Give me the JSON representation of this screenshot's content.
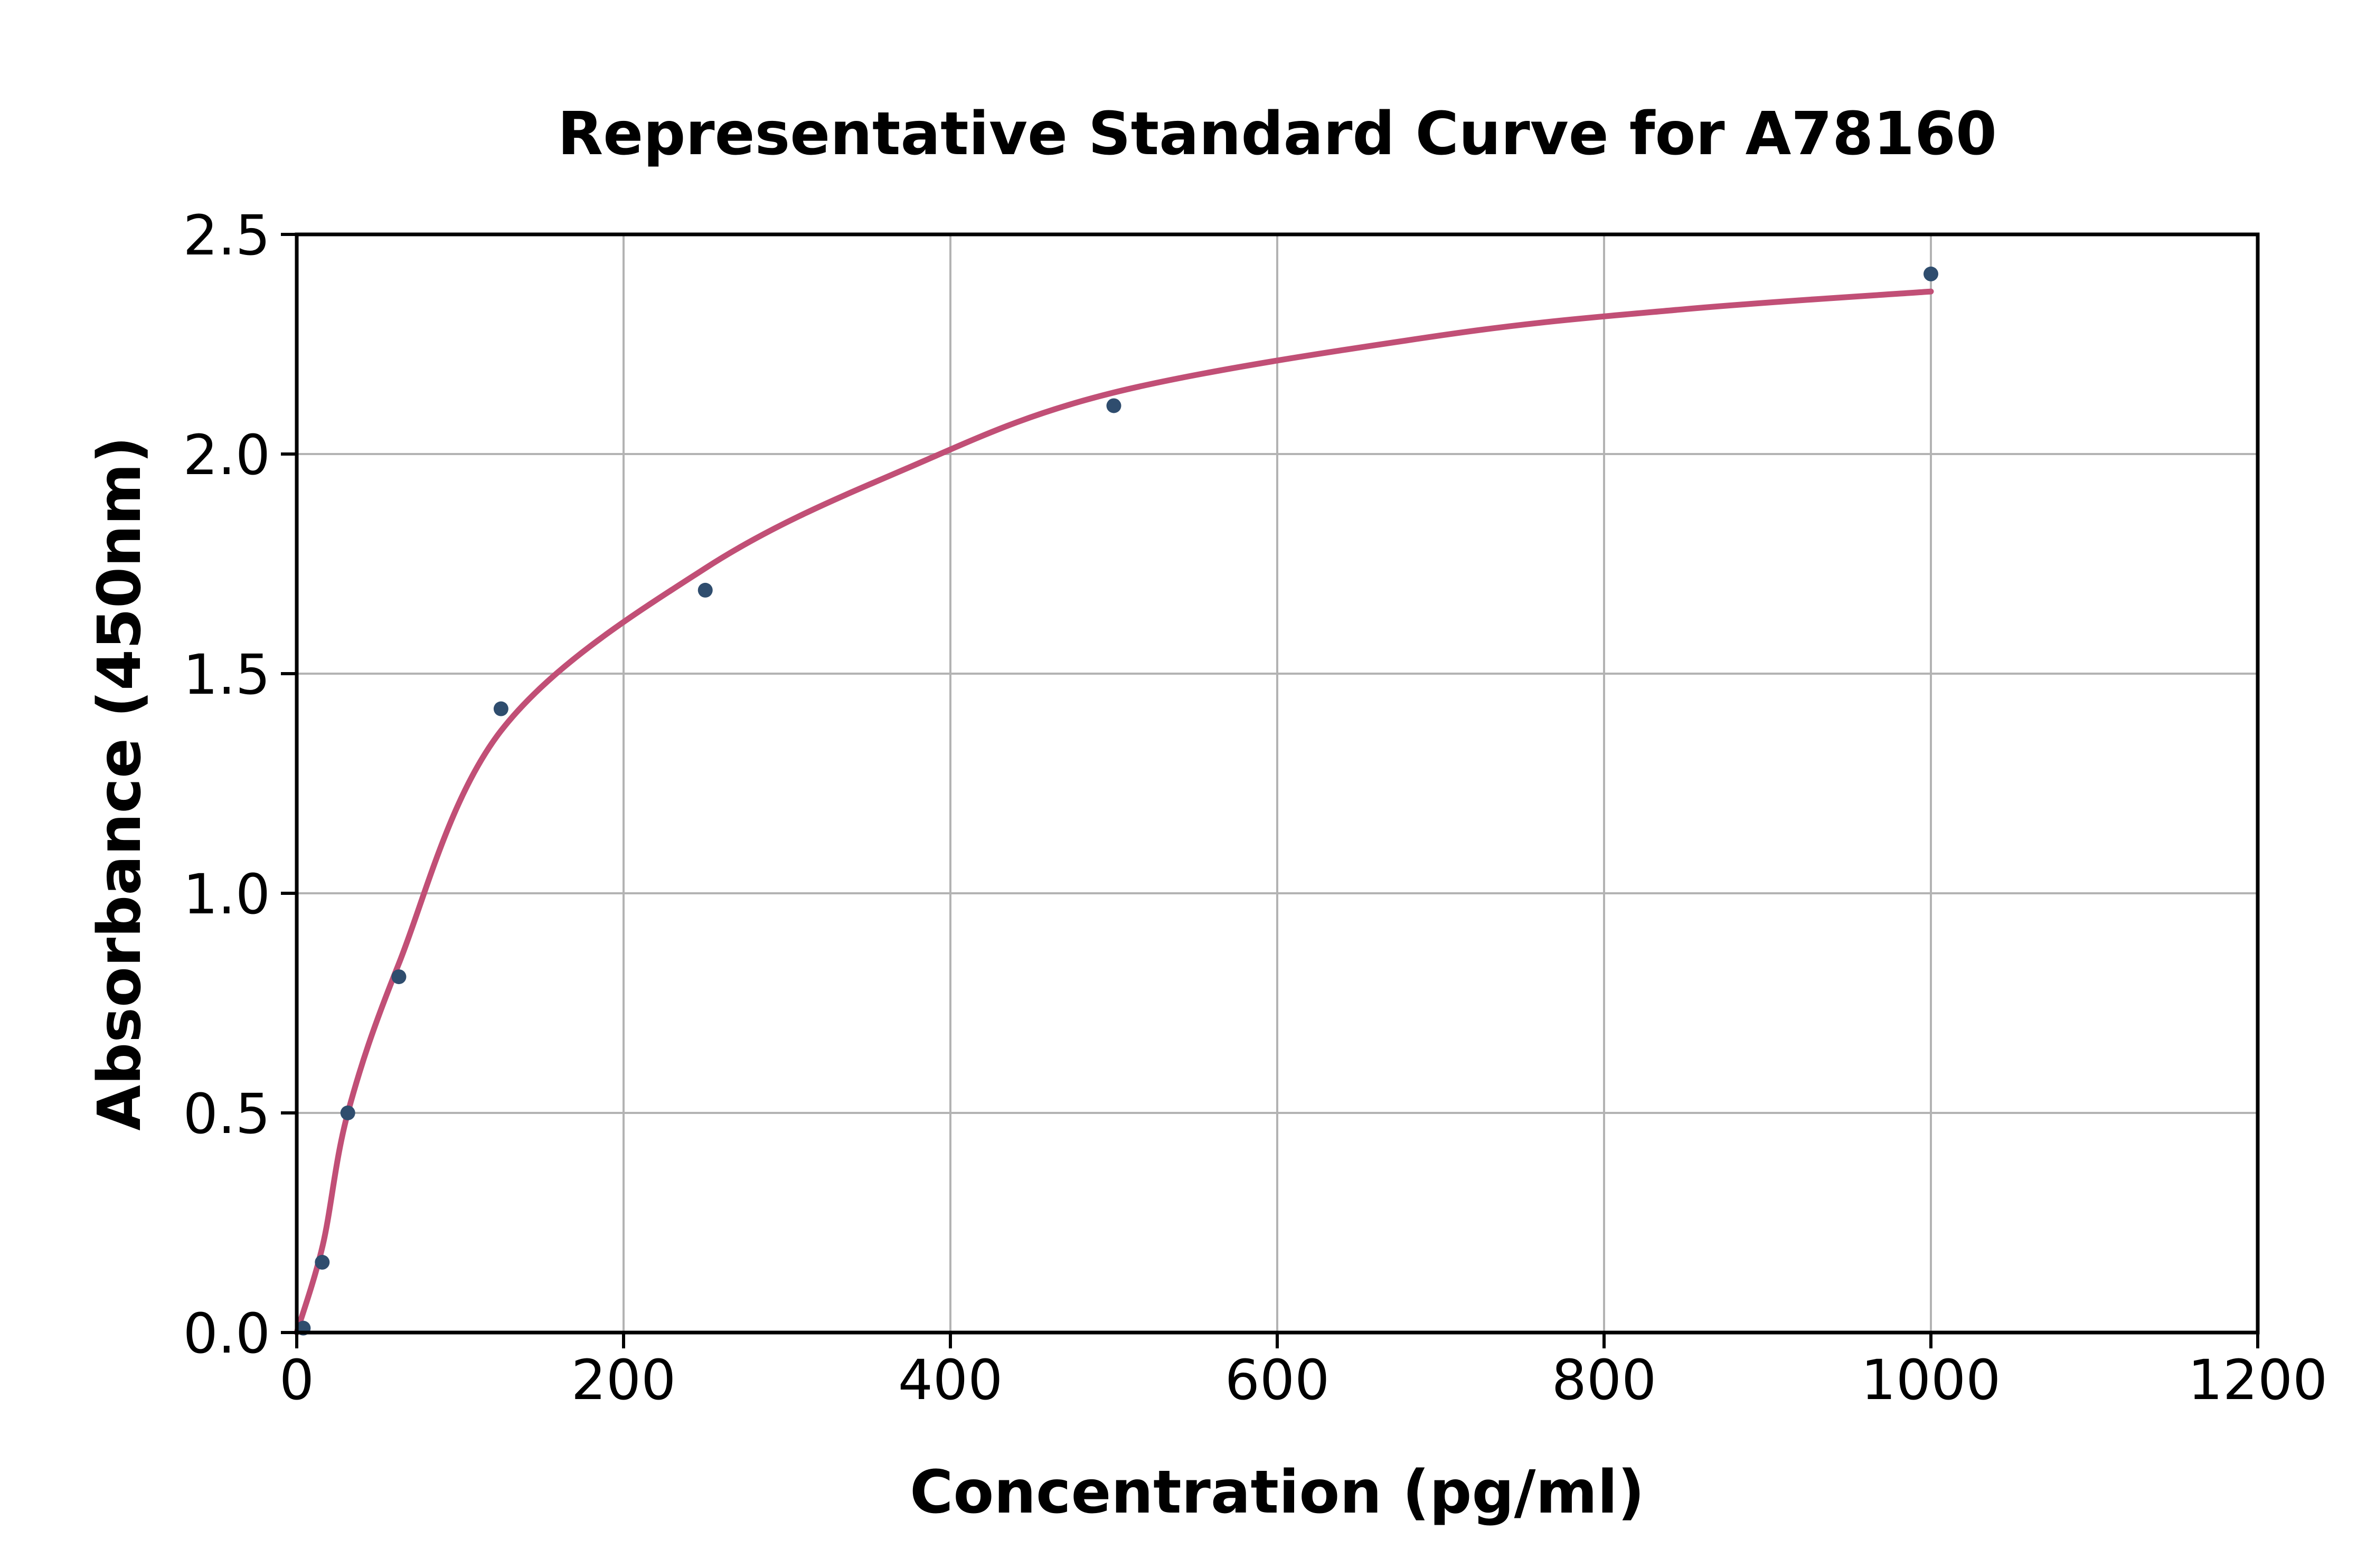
{
  "chart_data": {
    "type": "scatter",
    "title": "Representative Standard Curve for A78160",
    "xlabel": "Concentration (pg/ml)",
    "ylabel": "Absorbance (450nm)",
    "xlim": [
      0,
      1200
    ],
    "ylim": [
      0,
      2.5
    ],
    "x_ticks": [
      0,
      200,
      400,
      600,
      800,
      1000,
      1200
    ],
    "x_tick_labels": [
      "0",
      "200",
      "400",
      "600",
      "800",
      "1000",
      "1200"
    ],
    "y_ticks": [
      0,
      0.5,
      1.0,
      1.5,
      2.0,
      2.5
    ],
    "y_tick_labels": [
      "0.0",
      "0.5",
      "1.0",
      "1.5",
      "2.0",
      "2.5"
    ],
    "grid": true,
    "legend": false,
    "colors": {
      "marker": "#2F4D6E",
      "curve": "#C14F76",
      "grid": "#B3B3B3",
      "axis": "#000000",
      "background": "#FFFFFF"
    },
    "series": [
      {
        "name": "standard-points",
        "type": "scatter",
        "color": "#2F4D6E",
        "x": [
          4,
          15.6,
          31.25,
          62.5,
          125,
          250,
          500,
          1000
        ],
        "y": [
          0.01,
          0.16,
          0.5,
          0.81,
          1.42,
          1.69,
          2.11,
          2.41
        ]
      },
      {
        "name": "fitted-curve",
        "type": "line",
        "color": "#C14F76",
        "x": [
          0,
          16,
          31.25,
          62.5,
          125,
          250,
          375,
          500,
          700,
          850,
          1000
        ],
        "y": [
          0.0,
          0.2,
          0.5,
          0.84,
          1.37,
          1.74,
          1.97,
          2.14,
          2.27,
          2.33,
          2.37
        ]
      }
    ]
  }
}
